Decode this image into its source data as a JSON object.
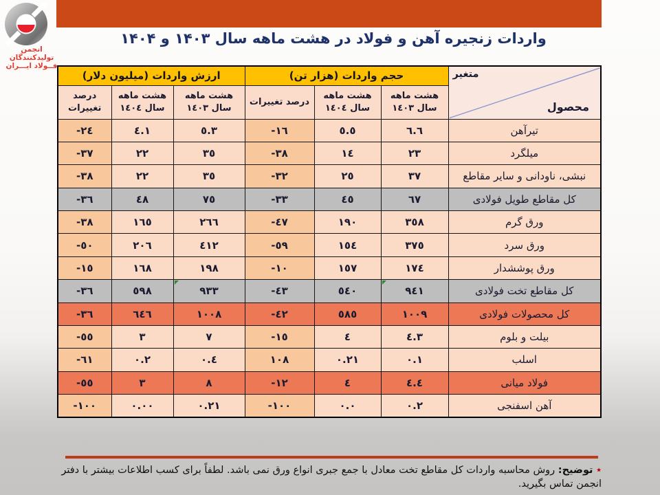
{
  "logo": {
    "org_line1": "انجمن تولیدکنندگان",
    "org_line2": "فــولاد ایـــران"
  },
  "title": "واردات زنجیره آهن و فولاد در هشت ماهه سال ۱۴۰۳ و ۱۴۰۴",
  "table": {
    "corner": {
      "top": "متغیر",
      "bottom": "محصول"
    },
    "groups": {
      "volume": "حجم واردات (هزار تن)",
      "value": "ارزش واردات (میلیون دلار)"
    },
    "subheaders": {
      "y1403_l1": "هشت ماهه",
      "y1403_l2": "سال ١٤٠٣",
      "y1404_l1": "هشت ماهه",
      "y1404_l2": "سال ١٤٠٤",
      "pct": "درصد تغییرات"
    },
    "rows": [
      {
        "name": "تیرآهن",
        "style": "normal",
        "vol_1403": "٦.٦",
        "vol_1404": "٥.٥",
        "vol_chg": "-١٦",
        "val_1403": "٥.٣",
        "val_1404": "٤.١",
        "val_chg": "-٢٤"
      },
      {
        "name": "میلگرد",
        "style": "normal",
        "vol_1403": "٢٣",
        "vol_1404": "١٤",
        "vol_chg": "-٣٨",
        "val_1403": "٣٥",
        "val_1404": "٢٢",
        "val_chg": "-٣٧"
      },
      {
        "name": "نبشی، ناودانی و سایر مقاطع",
        "style": "normal",
        "vol_1403": "٣٧",
        "vol_1404": "٢٥",
        "vol_chg": "-٣٢",
        "val_1403": "٣٥",
        "val_1404": "٢٢",
        "val_chg": "-٣٨"
      },
      {
        "name": "کل مقاطع طویل فولادی",
        "style": "subtotal",
        "vol_1403": "٦٧",
        "vol_1404": "٤٥",
        "vol_chg": "-٣٣",
        "val_1403": "٧٥",
        "val_1404": "٤٨",
        "val_chg": "-٣٦"
      },
      {
        "name": "ورق گرم",
        "style": "normal",
        "vol_1403": "٣٥٨",
        "vol_1404": "١٩٠",
        "vol_chg": "-٤٧",
        "val_1403": "٢٦٦",
        "val_1404": "١٦٥",
        "val_chg": "-٣٨"
      },
      {
        "name": "ورق سرد",
        "style": "normal",
        "vol_1403": "٣٧٥",
        "vol_1404": "١٥٤",
        "vol_chg": "-٥٩",
        "val_1403": "٤١٢",
        "val_1404": "٢٠٦",
        "val_chg": "-٥٠"
      },
      {
        "name": "ورق پوششدار",
        "style": "normal",
        "vol_1403": "١٧٤",
        "vol_1404": "١٥٧",
        "vol_chg": "-١٠",
        "val_1403": "١٩٨",
        "val_1404": "١٦٨",
        "val_chg": "-١٥"
      },
      {
        "name": "کل مقاطع تخت فولادی",
        "style": "subtotal",
        "vol_1403": "٩٤١",
        "vol_1404": "٥٤٠",
        "vol_chg": "-٤٣",
        "val_1403": "٩٣٣",
        "val_1404": "٥٩٨",
        "val_chg": "-٣٦",
        "green": [
          "vol_1403",
          "val_1403"
        ]
      },
      {
        "name": "کل محصولات فولادی",
        "style": "total",
        "vol_1403": "١٠٠٩",
        "vol_1404": "٥٨٥",
        "vol_chg": "-٤٢",
        "val_1403": "١٠٠٨",
        "val_1404": "٦٤٦",
        "val_chg": "-٣٦"
      },
      {
        "name": "بیلت و بلوم",
        "style": "normal",
        "vol_1403": "٤.٣",
        "vol_1404": "٤",
        "vol_chg": "-١٥",
        "val_1403": "٧",
        "val_1404": "٣",
        "val_chg": "-٥٥"
      },
      {
        "name": "اسلب",
        "style": "normal",
        "vol_1403": "٠.١",
        "vol_1404": "٠.٢١",
        "vol_chg": "١٠٨",
        "val_1403": "٠.٤",
        "val_1404": "٠.٢",
        "val_chg": "-٦١"
      },
      {
        "name": "فولاد میانی",
        "style": "total",
        "vol_1403": "٤.٤",
        "vol_1404": "٤",
        "vol_chg": "-١٢",
        "val_1403": "٨",
        "val_1404": "٣",
        "val_chg": "-٥٥"
      },
      {
        "name": "آهن اسفنجی",
        "style": "normal",
        "vol_1403": "٠.٢",
        "vol_1404": "٠.٠",
        "vol_chg": "-١٠٠",
        "val_1403": "٠.٢١",
        "val_1404": "٠.٠٠",
        "val_chg": "-١٠٠"
      }
    ]
  },
  "footer": {
    "star": "٭",
    "label": "توضیح:",
    "text": "روش محاسبه واردات کل مقاطع تخت معادل با جمع جبری انواع ورق نمی باشد. لطفاً برای کسب اطلاعات بیشتر با دفتر انجمن تماس بگیرید."
  },
  "colors": {
    "banner_orange": "#CB4917",
    "header_yellow": "#FFC000",
    "subtotal_gray": "#BEBEBE",
    "total_salmon": "#EC7856",
    "light_cell": "#FBDAC6",
    "pct_cell": "#F8C79C",
    "corner_pink": "#F9E7E0",
    "title_navy": "#1E3168",
    "logo_red": "#E23C30",
    "footer_rule_red": "#BE3C1B",
    "flag_green": "#2F8B2F",
    "diagonal_blue": "#8B96D4"
  }
}
